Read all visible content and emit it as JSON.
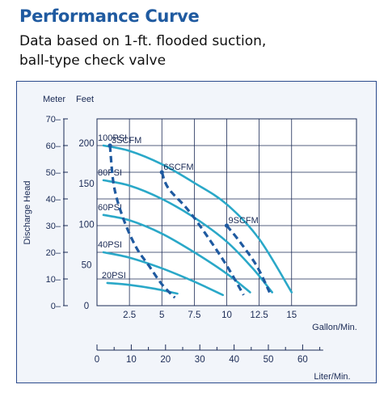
{
  "header": {
    "title": "Performance Curve",
    "subtitle_line1": "Data based on 1-ft. flooded suction,",
    "subtitle_line2": "ball-type check valve"
  },
  "chart_data": {
    "type": "line",
    "y_axes": {
      "meter_label": "Meter",
      "feet_label": "Feet",
      "meter_ticks": [
        0,
        10,
        20,
        30,
        40,
        50,
        60,
        70
      ],
      "feet_ticks": [
        0,
        50,
        100,
        150,
        200
      ],
      "ylabel": "Discharge Head",
      "ylim_meter": [
        0,
        70
      ]
    },
    "x_axes": {
      "gpm_label": "Gallon/Min.",
      "gpm_ticks": [
        2.5,
        5,
        7.5,
        10,
        12.5,
        15
      ],
      "gpm_tick_labels": [
        "2.5",
        "5",
        "7.5",
        "10",
        "12.5",
        "15"
      ],
      "lpm_label": "Liter/Min.",
      "lpm_ticks": [
        0,
        10,
        20,
        30,
        40,
        50,
        60
      ],
      "xlim_gpm": [
        0,
        20
      ]
    },
    "grid": true,
    "colors": {
      "pressure": "#2aa8c8",
      "air": "#1f5aa0"
    },
    "series": [
      {
        "name": "100PSI",
        "kind": "pressure",
        "points": [
          [
            0.5,
            60
          ],
          [
            2.5,
            58
          ],
          [
            5,
            53
          ],
          [
            7.5,
            46
          ],
          [
            10,
            38
          ],
          [
            12.5,
            25
          ],
          [
            15,
            5
          ]
        ]
      },
      {
        "name": "80PSI",
        "kind": "pressure",
        "points": [
          [
            0.5,
            47
          ],
          [
            2.5,
            45
          ],
          [
            5,
            40
          ],
          [
            7.5,
            33
          ],
          [
            10,
            24
          ],
          [
            12,
            14
          ],
          [
            13.5,
            5
          ]
        ]
      },
      {
        "name": "60PSI",
        "kind": "pressure",
        "points": [
          [
            0.5,
            34
          ],
          [
            2.5,
            32
          ],
          [
            5,
            27
          ],
          [
            7.5,
            20
          ],
          [
            10,
            12
          ],
          [
            11.8,
            5
          ]
        ]
      },
      {
        "name": "40PSI",
        "kind": "pressure",
        "points": [
          [
            0.5,
            20
          ],
          [
            2.5,
            18
          ],
          [
            5,
            14
          ],
          [
            7.5,
            9
          ],
          [
            9.7,
            4
          ]
        ]
      },
      {
        "name": "20PSI",
        "kind": "pressure",
        "points": [
          [
            0.8,
            8.5
          ],
          [
            2.5,
            7.8
          ],
          [
            4.5,
            6.3
          ],
          [
            6.2,
            4.5
          ]
        ]
      }
    ],
    "air_series": [
      {
        "name": "3SCFM",
        "kind": "air",
        "points": [
          [
            1,
            60
          ],
          [
            1.3,
            45
          ],
          [
            2,
            33
          ],
          [
            3,
            22
          ],
          [
            4,
            15
          ],
          [
            5,
            8
          ],
          [
            6,
            3
          ]
        ]
      },
      {
        "name": "6SCFM",
        "kind": "air",
        "points": [
          [
            5,
            50
          ],
          [
            5.5,
            44
          ],
          [
            7,
            36
          ],
          [
            8.5,
            26
          ],
          [
            10,
            15
          ],
          [
            11.3,
            4
          ]
        ]
      },
      {
        "name": "9SCFM",
        "kind": "air",
        "points": [
          [
            10,
            30
          ],
          [
            11,
            24
          ],
          [
            12.3,
            15
          ],
          [
            13.3,
            5
          ]
        ]
      }
    ]
  }
}
